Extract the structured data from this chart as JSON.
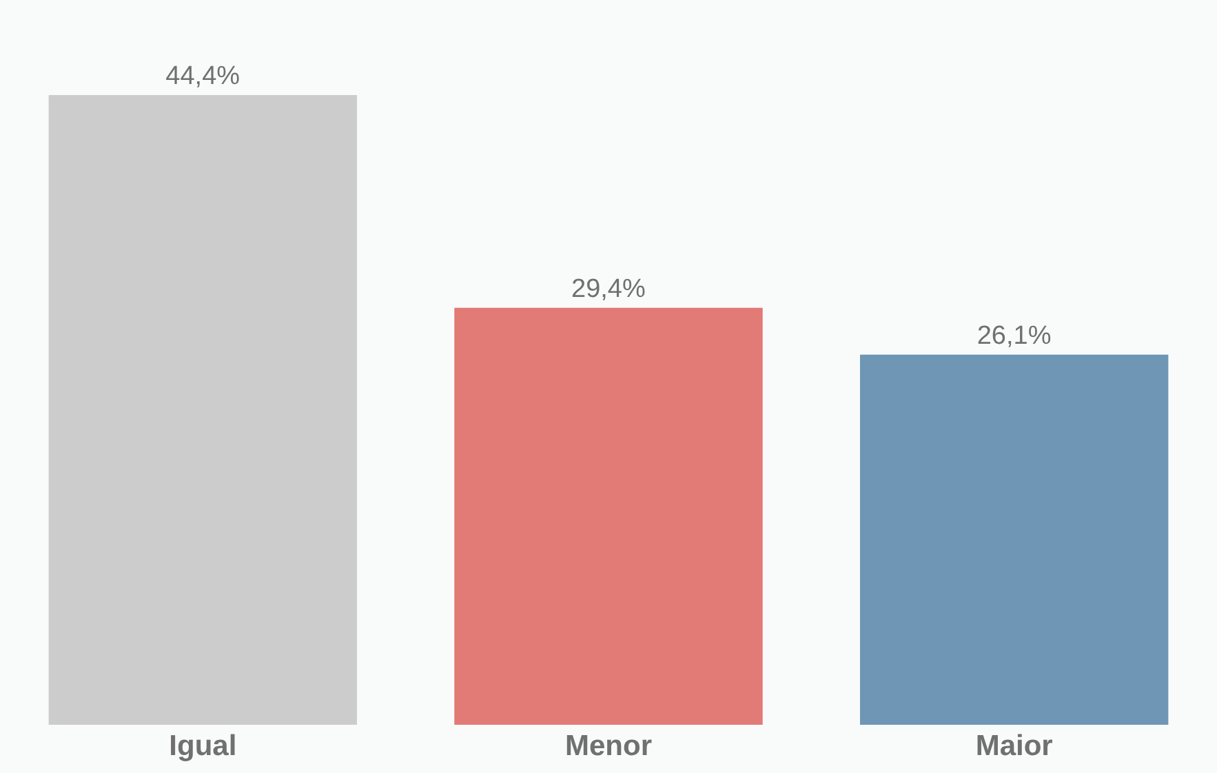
{
  "chart_data": {
    "type": "bar",
    "categories": [
      "Igual",
      "Menor",
      "Maior"
    ],
    "values": [
      44.4,
      29.4,
      26.1
    ],
    "colors": [
      "#cccccc",
      "#e27a76",
      "#6f96b4"
    ],
    "value_labels": [
      "44,4%",
      "29,4%",
      "26,1%"
    ],
    "grid": false,
    "legend": false
  }
}
